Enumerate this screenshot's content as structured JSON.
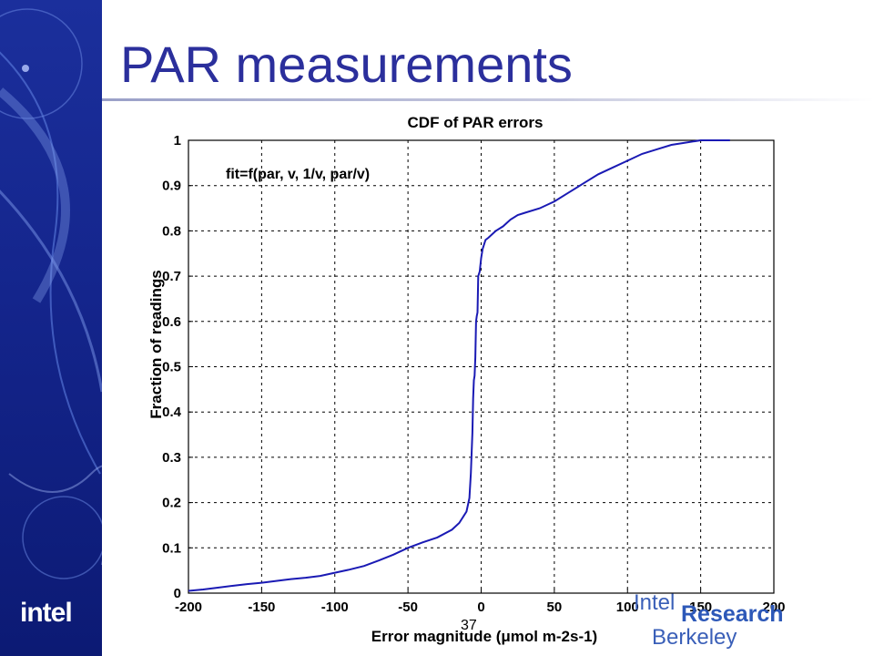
{
  "slide": {
    "title": "PAR measurements",
    "page_number": "37",
    "logos": {
      "left_logo_text": "intel",
      "research_logo": {
        "line1": "Intel",
        "line2": "Research",
        "line3": "Berkeley"
      }
    }
  },
  "colors": {
    "sidebar": "#14258c",
    "title": "#2b2f9c",
    "line": "#1a1ab4",
    "logo": "#2d58b8"
  },
  "chart_data": {
    "type": "line",
    "title": "CDF of PAR errors",
    "xlabel": "Error magnitude (μmol m-2s-1)",
    "ylabel": "Fraction of readings",
    "annotation": "fit=f(par, v, 1/v, par/v)",
    "xlim": [
      -200,
      200
    ],
    "ylim": [
      0,
      1
    ],
    "grid": true,
    "x_ticks": [
      -200,
      -150,
      -100,
      -50,
      0,
      50,
      100,
      150,
      200
    ],
    "y_ticks": [
      0,
      0.1,
      0.2,
      0.3,
      0.4,
      0.5,
      0.6,
      0.7,
      0.8,
      0.9,
      1
    ],
    "x_tick_labels": [
      "-200",
      "-150",
      "-100",
      "-50",
      "0",
      "50",
      "100",
      "150",
      "200"
    ],
    "y_tick_labels": [
      "0",
      "0.1",
      "0.2",
      "0.3",
      "0.4",
      "0.5",
      "0.6",
      "0.7",
      "0.8",
      "0.9",
      "1"
    ],
    "series": [
      {
        "x": [
          -200,
          -190,
          -180,
          -170,
          -160,
          -150,
          -140,
          -130,
          -120,
          -110,
          -100,
          -90,
          -80,
          -70,
          -60,
          -50,
          -40,
          -30,
          -20,
          -15,
          -10,
          -8,
          -7,
          -6,
          -5.5,
          -5,
          -4.5,
          -4,
          -3.5,
          -3,
          -2.5,
          -2,
          -1.5,
          -1,
          0,
          1,
          3,
          5,
          10,
          15,
          20,
          25,
          30,
          40,
          50,
          60,
          70,
          80,
          90,
          100,
          110,
          120,
          130,
          140,
          150,
          160,
          170
        ],
        "y": [
          0.005,
          0.008,
          0.012,
          0.016,
          0.02,
          0.023,
          0.027,
          0.031,
          0.034,
          0.038,
          0.045,
          0.052,
          0.06,
          0.072,
          0.085,
          0.1,
          0.112,
          0.123,
          0.14,
          0.155,
          0.18,
          0.21,
          0.265,
          0.355,
          0.43,
          0.47,
          0.48,
          0.52,
          0.6,
          0.612,
          0.62,
          0.7,
          0.705,
          0.71,
          0.74,
          0.76,
          0.78,
          0.785,
          0.8,
          0.81,
          0.825,
          0.835,
          0.84,
          0.85,
          0.865,
          0.885,
          0.905,
          0.925,
          0.94,
          0.955,
          0.97,
          0.98,
          0.99,
          0.995,
          1.0,
          1.0,
          1.0
        ]
      }
    ]
  }
}
